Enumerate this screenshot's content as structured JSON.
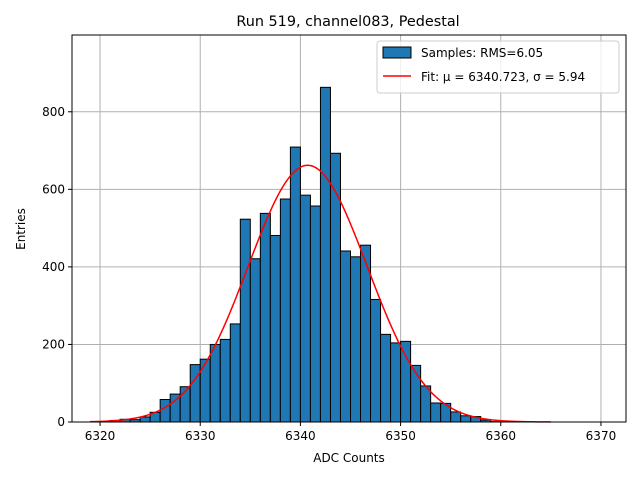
{
  "chart_data": {
    "type": "bar",
    "title": "Run 519, channel083, Pedestal",
    "xlabel": "ADC Counts",
    "ylabel": "Entries",
    "xlim": [
      6317.2,
      6372.5
    ],
    "ylim": [
      0,
      998
    ],
    "xticks": [
      6320,
      6330,
      6340,
      6350,
      6360,
      6370
    ],
    "yticks": [
      0,
      200,
      400,
      600,
      800
    ],
    "grid": true,
    "legend": {
      "placement": "top-right",
      "entries": [
        {
          "label": "Samples: RMS=6.05",
          "kind": "patch"
        },
        {
          "label": "Fit: μ = 6340.723, σ = 5.94",
          "kind": "line"
        }
      ]
    },
    "histogram": {
      "bin_edges": [
        6321,
        6322,
        6323,
        6324,
        6325,
        6326,
        6327,
        6328,
        6329,
        6330,
        6331,
        6332,
        6333,
        6334,
        6335,
        6336,
        6337,
        6338,
        6339,
        6340,
        6341,
        6342,
        6343,
        6344,
        6345,
        6346,
        6347,
        6348,
        6349,
        6350,
        6351,
        6352,
        6353,
        6354,
        6355,
        6356,
        6357,
        6358,
        6359,
        6360,
        6361
      ],
      "counts": [
        4,
        7,
        6,
        13,
        25,
        58,
        72,
        91,
        148,
        162,
        200,
        213,
        253,
        523,
        421,
        538,
        481,
        575,
        709,
        585,
        557,
        863,
        693,
        441,
        426,
        456,
        316,
        226,
        204,
        208,
        146,
        93,
        49,
        48,
        26,
        16,
        14,
        5,
        1,
        0
      ],
      "facecolor": "#1f77b4",
      "edgecolor": "#000000"
    },
    "fit": {
      "mu": 6340.723,
      "sigma": 5.94,
      "amplitude": 662,
      "x_range": [
        6319,
        6365
      ],
      "color": "#ff0000"
    }
  }
}
